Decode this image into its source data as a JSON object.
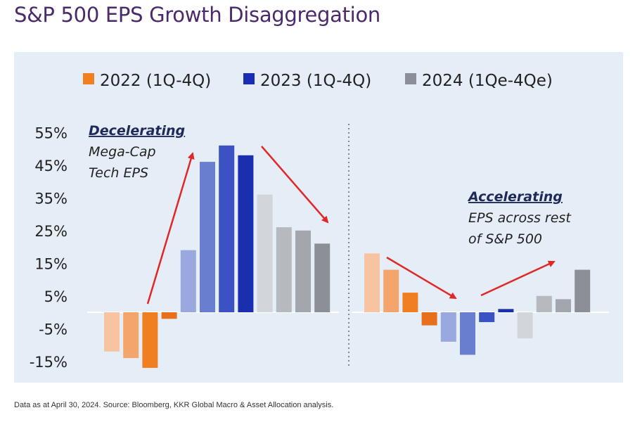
{
  "title": "S&P 500 EPS Growth Disaggregation",
  "footnote": "Data as at April 30, 2024. Source: Bloomberg, KKR Global Macro & Asset Allocation analysis.",
  "colors": {
    "panel_bg": "#e5edf6",
    "arrow": "#e02828",
    "divider": "#888888"
  },
  "chart_data": {
    "type": "bar",
    "title": "S&P 500 EPS Growth Disaggregation",
    "ylim": [
      -15,
      55
    ],
    "yticks": [
      "55%",
      "45%",
      "35%",
      "25%",
      "15%",
      "5%",
      "-5%",
      "-15%"
    ],
    "ytick_values": [
      55,
      45,
      35,
      25,
      15,
      5,
      -5,
      -15
    ],
    "legend": [
      {
        "label": "2022 (1Q-4Q)",
        "color": "#f07f22"
      },
      {
        "label": "2023 (1Q-4Q)",
        "color": "#1a2fb0"
      },
      {
        "label": "2024 (1Qe-4Qe)",
        "color": "#8c9096"
      }
    ],
    "groups": [
      {
        "name": "Mega-Cap Tech",
        "annotation_head": "Decelerating",
        "annotation_lines": [
          "Mega-Cap",
          "Tech EPS"
        ],
        "bars": [
          {
            "year": "2022",
            "quarter": "1Q",
            "value": -12,
            "color": "#f7c3a0"
          },
          {
            "year": "2022",
            "quarter": "2Q",
            "value": -14,
            "color": "#f4a56c"
          },
          {
            "year": "2022",
            "quarter": "3Q",
            "value": -17,
            "color": "#f07f22"
          },
          {
            "year": "2022",
            "quarter": "4Q",
            "value": -2,
            "color": "#e8701c"
          },
          {
            "year": "2023",
            "quarter": "1Q",
            "value": 19,
            "color": "#9aa8e0"
          },
          {
            "year": "2023",
            "quarter": "2Q",
            "value": 46,
            "color": "#6a7ed0"
          },
          {
            "year": "2023",
            "quarter": "3Q",
            "value": 51,
            "color": "#3a52c4"
          },
          {
            "year": "2023",
            "quarter": "4Q",
            "value": 48,
            "color": "#1a2fb0"
          },
          {
            "year": "2024",
            "quarter": "1Qe",
            "value": 36,
            "color": "#d2d5d9"
          },
          {
            "year": "2024",
            "quarter": "2Qe",
            "value": 26,
            "color": "#b6babf"
          },
          {
            "year": "2024",
            "quarter": "3Qe",
            "value": 25,
            "color": "#a3a7ad"
          },
          {
            "year": "2024",
            "quarter": "4Qe",
            "value": 21,
            "color": "#8c9096"
          }
        ]
      },
      {
        "name": "Rest of S&P 500",
        "annotation_head": "Accelerating",
        "annotation_lines": [
          "EPS  across rest",
          "of S&P 500"
        ],
        "bars": [
          {
            "year": "2022",
            "quarter": "1Q",
            "value": 18,
            "color": "#f7c3a0"
          },
          {
            "year": "2022",
            "quarter": "2Q",
            "value": 13,
            "color": "#f4a56c"
          },
          {
            "year": "2022",
            "quarter": "3Q",
            "value": 6,
            "color": "#f07f22"
          },
          {
            "year": "2022",
            "quarter": "4Q",
            "value": -4,
            "color": "#e8701c"
          },
          {
            "year": "2023",
            "quarter": "1Q",
            "value": -9,
            "color": "#9aa8e0"
          },
          {
            "year": "2023",
            "quarter": "2Q",
            "value": -13,
            "color": "#6a7ed0"
          },
          {
            "year": "2023",
            "quarter": "3Q",
            "value": -3,
            "color": "#3a52c4"
          },
          {
            "year": "2023",
            "quarter": "4Q",
            "value": 1,
            "color": "#1a2fb0"
          },
          {
            "year": "2024",
            "quarter": "1Qe",
            "value": -8,
            "color": "#d2d5d9"
          },
          {
            "year": "2024",
            "quarter": "2Qe",
            "value": 5,
            "color": "#b6babf"
          },
          {
            "year": "2024",
            "quarter": "3Qe",
            "value": 4,
            "color": "#a3a7ad"
          },
          {
            "year": "2024",
            "quarter": "4Qe",
            "value": 13,
            "color": "#8c9096"
          }
        ]
      }
    ]
  }
}
